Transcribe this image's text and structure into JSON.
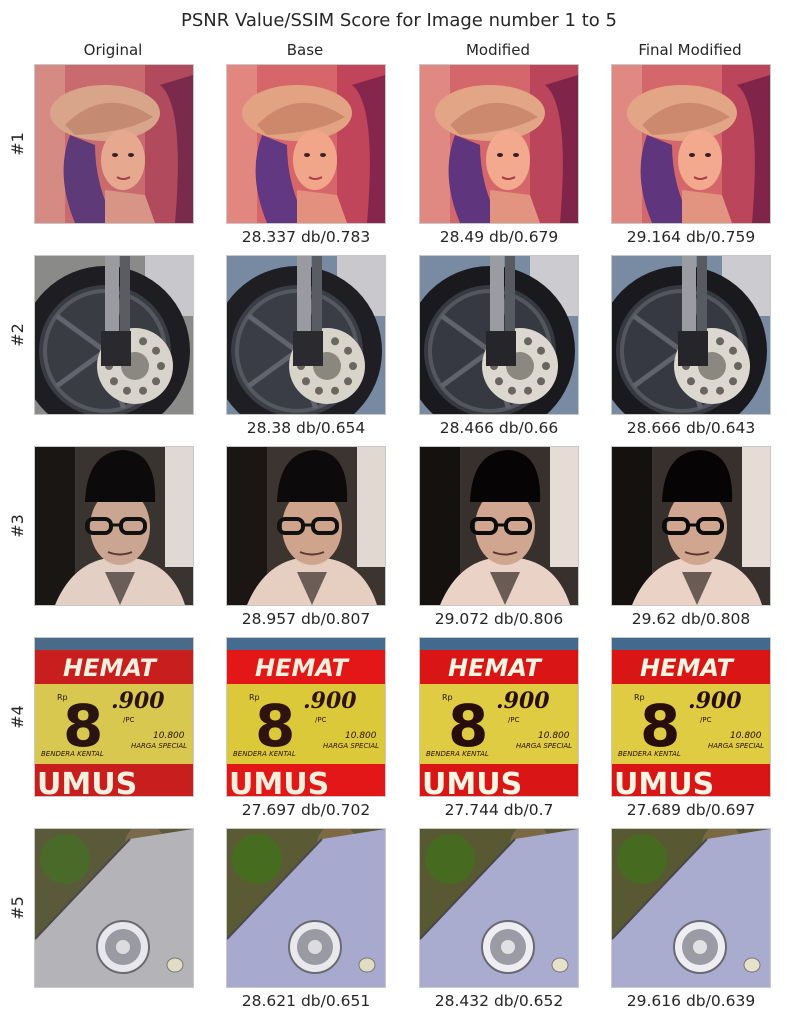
{
  "chart_data": {
    "type": "table",
    "title": "PSNR Value/SSIM Score for Image number 1 to 5",
    "columns": [
      "Original",
      "Base",
      "Modified",
      "Final Modified"
    ],
    "rows": [
      {
        "label": "#1",
        "image": "woman-with-hat-icon",
        "scores": [
          "28.337 db/0.783",
          "28.49 db/0.679",
          "29.164 db/0.759"
        ]
      },
      {
        "label": "#2",
        "image": "motorcycle-wheel-icon",
        "scores": [
          "28.38 db/0.654",
          "28.466 db/0.66",
          "28.666 db/0.643"
        ]
      },
      {
        "label": "#3",
        "image": "man-portrait-icon",
        "scores": [
          "28.957 db/0.807",
          "29.072 db/0.806",
          "29.62 db/0.808"
        ]
      },
      {
        "label": "#4",
        "image": "price-sign-icon",
        "scores": [
          "27.697 db/0.702",
          "27.744 db/0.7",
          "27.689 db/0.697"
        ]
      },
      {
        "label": "#5",
        "image": "phone-camera-icon",
        "scores": [
          "28.621 db/0.651",
          "28.432 db/0.652",
          "29.616 db/0.639"
        ]
      }
    ],
    "sign_text": {
      "word": "HEMAT",
      "rp": "Rp",
      "digit": "8",
      "price": ".900",
      "unit": "/PC",
      "small": "10.800",
      "special": "HARGA SPECIAL",
      "bottom": "UMUS",
      "desc": "BENDERA KENTAL"
    }
  }
}
